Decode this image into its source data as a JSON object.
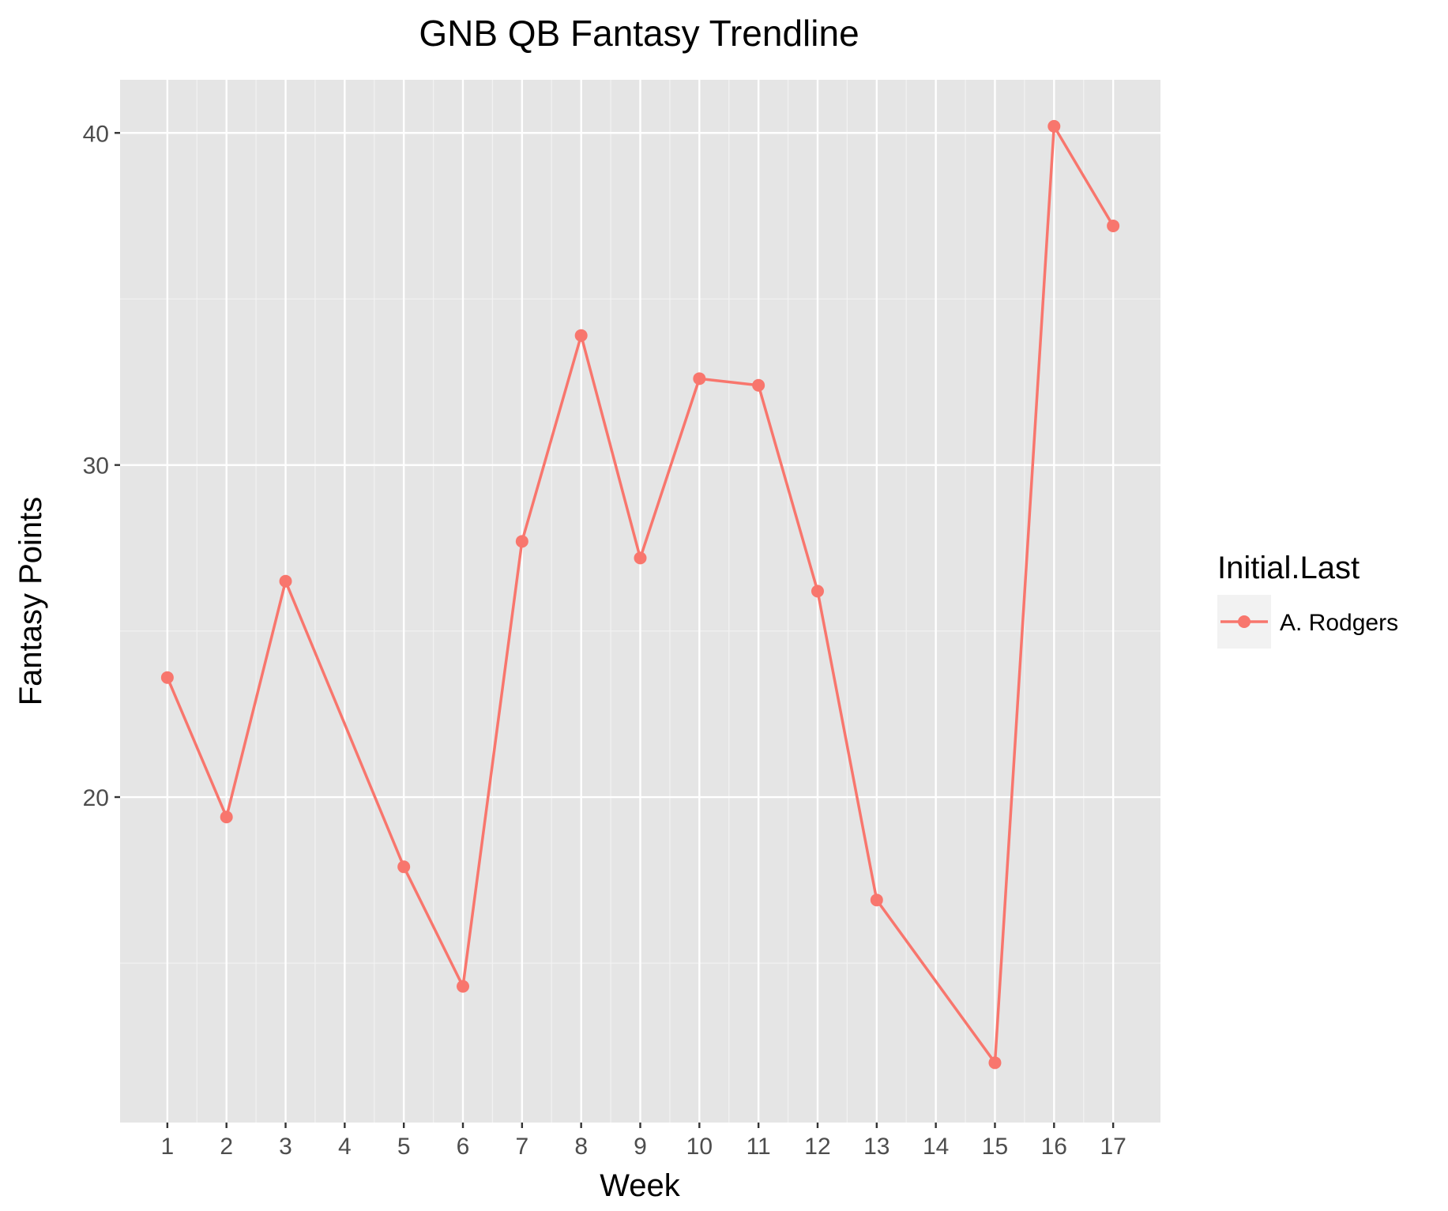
{
  "chart_data": {
    "type": "line",
    "title": "GNB QB Fantasy Trendline",
    "xlabel": "Week",
    "ylabel": "Fantasy Points",
    "x": [
      1,
      2,
      3,
      5,
      6,
      7,
      8,
      9,
      10,
      11,
      12,
      13,
      15,
      16,
      17
    ],
    "x_ticks": [
      "1",
      "2",
      "3",
      "4",
      "5",
      "6",
      "7",
      "8",
      "9",
      "10",
      "11",
      "12",
      "13",
      "14",
      "15",
      "16",
      "17"
    ],
    "y_ticks": [
      "20",
      "30",
      "40"
    ],
    "xlim": [
      0.2,
      17.8
    ],
    "ylim": [
      10.2,
      41.6
    ],
    "grid": true,
    "legend": {
      "title": "Initial.Last",
      "position": "right"
    },
    "series": [
      {
        "name": "A. Rodgers",
        "color": "#F8766D",
        "x": [
          1,
          2,
          3,
          5,
          6,
          7,
          8,
          9,
          10,
          11,
          12,
          13,
          15,
          16,
          17
        ],
        "values": [
          23.6,
          19.4,
          26.5,
          17.9,
          14.3,
          27.7,
          33.9,
          27.2,
          32.6,
          32.4,
          26.2,
          16.9,
          12.0,
          40.2,
          37.2
        ]
      }
    ]
  }
}
